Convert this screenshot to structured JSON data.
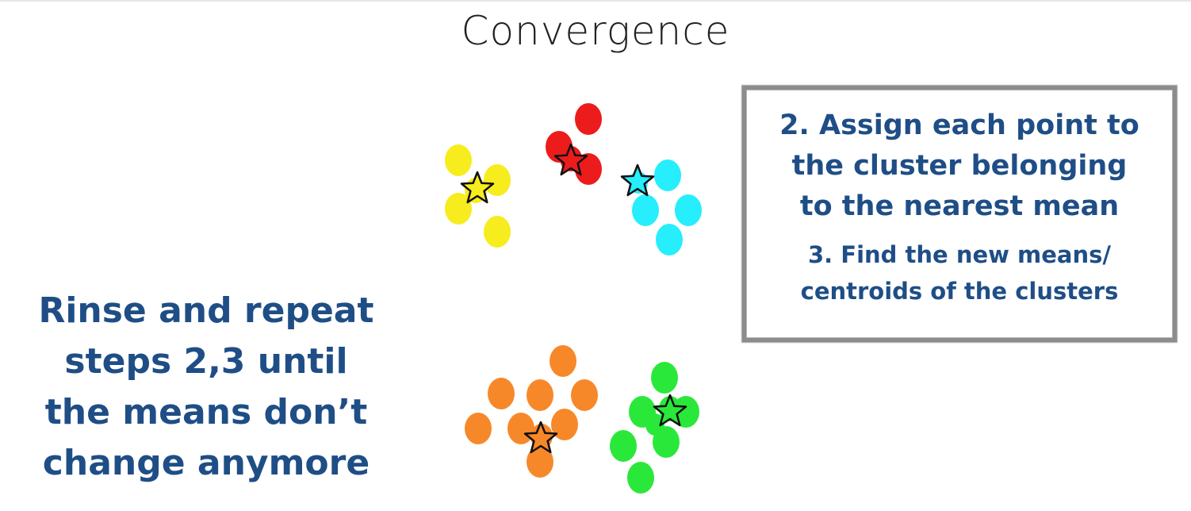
{
  "title": "Convergence",
  "steps": {
    "step2_lines": [
      "2. Assign each point to",
      "the cluster belonging",
      "to the nearest mean"
    ],
    "step3_lines": [
      "3. Find the new means/",
      "centroids of the clusters"
    ]
  },
  "instruction_lines": [
    "Rinse and repeat",
    "steps 2,3 until",
    "the means don’t",
    "change anymore"
  ],
  "clusters": [
    {
      "name": "yellow",
      "color": "#f7ec1e",
      "points": 5
    },
    {
      "name": "red",
      "color": "#ec1c1c",
      "points": 4
    },
    {
      "name": "cyan",
      "color": "#26eefc",
      "points": 5
    },
    {
      "name": "orange",
      "color": "#f7882a",
      "points": 9
    },
    {
      "name": "green",
      "color": "#2ae83a",
      "points": 8
    }
  ]
}
